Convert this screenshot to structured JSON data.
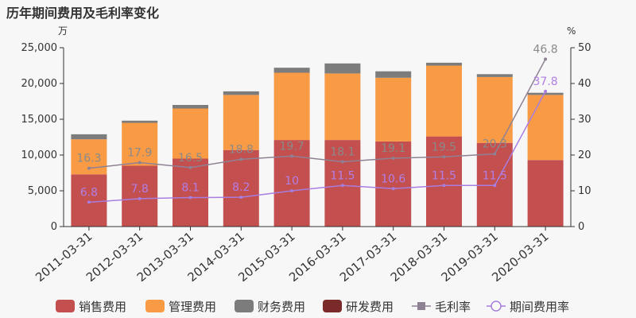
{
  "chart_data": {
    "type": "bar",
    "title": "历年期间费用及毛利率变化",
    "y_left_unit": "万",
    "y_right_unit": "%",
    "categories": [
      "2011-03-31",
      "2012-03-31",
      "2013-03-31",
      "2014-03-31",
      "2015-03-31",
      "2016-03-31",
      "2017-03-31",
      "2018-03-31",
      "2019-03-31",
      "2020-03-31"
    ],
    "y_left_ticks": [
      "0",
      "5,000",
      "10,000",
      "15,000",
      "20,000",
      "25,000"
    ],
    "y_right_ticks": [
      "0",
      "10",
      "20",
      "30",
      "40",
      "50"
    ],
    "ylim_left": [
      0,
      25000
    ],
    "ylim_right": [
      0,
      50
    ],
    "grid": false,
    "legend_position": "bottom",
    "bar_series": [
      {
        "name": "销售费用",
        "color": "#c34f4e",
        "values": [
          7300,
          8500,
          9500,
          10700,
          12100,
          12100,
          11900,
          12600,
          11700,
          9300
        ]
      },
      {
        "name": "管理费用",
        "color": "#f99a45",
        "values": [
          4900,
          6000,
          7000,
          7700,
          9400,
          9300,
          8900,
          9900,
          9200,
          9100
        ]
      },
      {
        "name": "财务费用",
        "color": "#7c7c7c",
        "values": [
          700,
          300,
          500,
          500,
          700,
          1400,
          900,
          400,
          400,
          300
        ]
      },
      {
        "name": "研发费用",
        "color": "#7b2a2a",
        "values": [
          0,
          0,
          0,
          0,
          0,
          0,
          0,
          0,
          0,
          0
        ]
      }
    ],
    "line_series": [
      {
        "name": "毛利率",
        "color": "#8f8194",
        "label_color": "#8a8a8a",
        "marker": "square",
        "values": [
          16.3,
          17.9,
          16.5,
          18.8,
          19.7,
          18.1,
          19.1,
          19.5,
          20.3,
          46.8
        ],
        "labels": [
          "16.3",
          "17.9",
          "16.5",
          "18.8",
          "19.7",
          "18.1",
          "19.1",
          "19.5",
          "20.3",
          "46.8"
        ]
      },
      {
        "name": "期间费用率",
        "color": "#a87de0",
        "label_color": "#b27fe6",
        "marker": "circle",
        "values": [
          6.8,
          7.8,
          8.1,
          8.2,
          10,
          11.5,
          10.6,
          11.5,
          11.5,
          37.8
        ],
        "labels": [
          "6.8",
          "7.8",
          "8.1",
          "8.2",
          "10",
          "11.5",
          "10.6",
          "11.5",
          "11.5",
          "37.8"
        ]
      }
    ]
  }
}
